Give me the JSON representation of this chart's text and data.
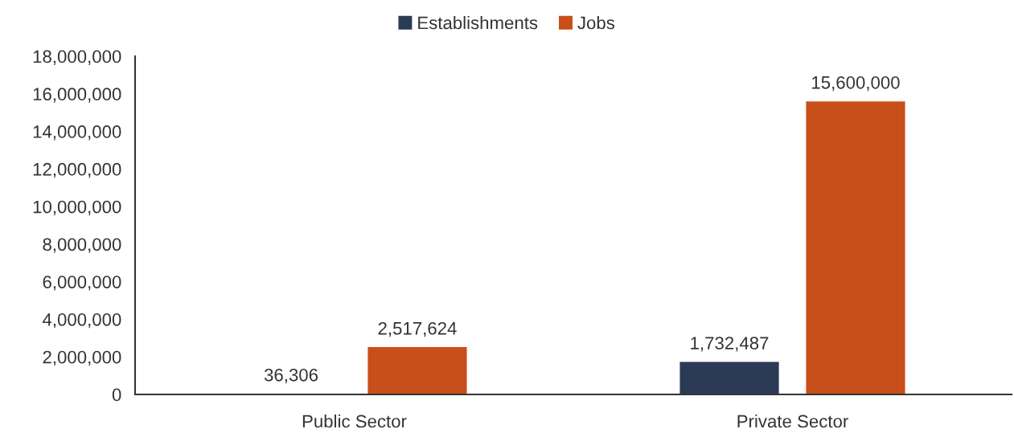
{
  "chart_data": {
    "type": "bar",
    "categories": [
      "Public Sector",
      "Private Sector"
    ],
    "series": [
      {
        "name": "Establishments",
        "color": "#2b3a55",
        "values": [
          36306,
          1732487
        ],
        "value_labels": [
          "36,306",
          "1,732,487"
        ]
      },
      {
        "name": "Jobs",
        "color": "#c94f1a",
        "values": [
          2517624,
          15600000
        ],
        "value_labels": [
          "2,517,624",
          "15,600,000"
        ]
      }
    ],
    "ylim": [
      0,
      18000000
    ],
    "yticks": [
      0,
      {
        "value": 2000000,
        "label": "2,000,000"
      },
      {
        "value": 4000000,
        "label": "4,000,000"
      },
      {
        "value": 6000000,
        "label": "6,000,000"
      },
      {
        "value": 8000000,
        "label": "8,000,000"
      },
      {
        "value": 10000000,
        "label": "10,000,000"
      },
      {
        "value": 12000000,
        "label": "12,000,000"
      },
      {
        "value": 14000000,
        "label": "14,000,000"
      },
      {
        "value": 16000000,
        "label": "16,000,000"
      },
      {
        "value": 18000000,
        "label": "18,000,000"
      }
    ],
    "grid": false,
    "legend": "top"
  }
}
